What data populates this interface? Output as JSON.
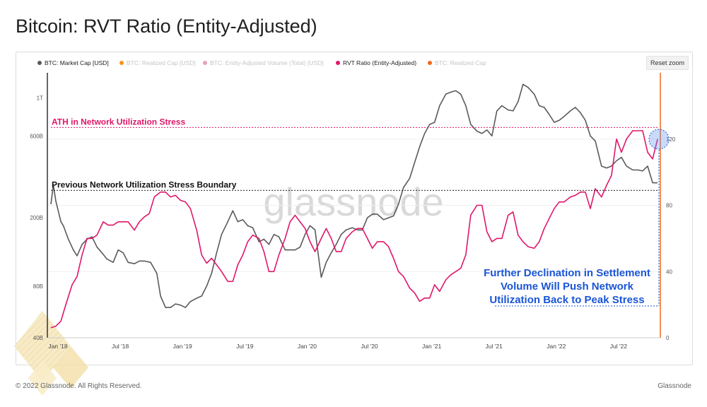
{
  "page": {
    "title": "Bitcoin: RVT Ratio (Entity-Adjusted)",
    "copyright": "© 2022 Glassnode. All Rights Reserved.",
    "brand": "Glassnode",
    "watermark": "glassnode",
    "reset_zoom_label": "Reset zoom"
  },
  "colors": {
    "market_cap": "#5a5a5a",
    "realized_cap": "#f7931a",
    "entity_volume": "#e8a0bf",
    "rvt_ratio": "#e0166a",
    "realized_cap_2": "#f26a1b",
    "annotation_blue": "#1a55d6"
  },
  "chart_data": {
    "type": "line",
    "legend": [
      {
        "name": "BTC: Market Cap [USD]",
        "color": "#5a5a5a",
        "active": true
      },
      {
        "name": "BTC: Realized Cap [USD]",
        "color": "#f7931a",
        "active": false
      },
      {
        "name": "BTC: Entity-Adjusted Volume (Total) [USD]",
        "color": "#e8a0bf",
        "active": false
      },
      {
        "name": "RVT Ratio (Entity-Adjusted)",
        "color": "#e0166a",
        "active": true
      },
      {
        "name": "BTC: Realized Cap",
        "color": "#f26a1b",
        "active": false
      }
    ],
    "legend_placement": "top-left",
    "x_ticks": [
      "Jan '18",
      "Jul '18",
      "Jan '19",
      "Jul '19",
      "Jan '20",
      "Jul '20",
      "Jan '21",
      "Jul '21",
      "Jan '22",
      "Jul '22"
    ],
    "x_range": [
      2018.0,
      2022.875
    ],
    "y_left": {
      "scale": "log",
      "ticks": [
        "40B",
        "80B",
        "200B",
        "600B",
        "1T"
      ],
      "tick_values": [
        40,
        80,
        200,
        600,
        1000
      ],
      "range": [
        40,
        1400
      ]
    },
    "y_right": {
      "scale": "linear",
      "ticks": [
        "0",
        "40",
        "80",
        "120"
      ],
      "tick_values": [
        0,
        40,
        80,
        120
      ],
      "range": [
        0,
        160
      ]
    },
    "grid": true,
    "series": [
      {
        "name": "BTC: Market Cap [USD]",
        "axis": "left",
        "unit": "billion USD",
        "points": [
          [
            2018.0,
            240
          ],
          [
            2018.02,
            310
          ],
          [
            2018.04,
            250
          ],
          [
            2018.08,
            190
          ],
          [
            2018.1,
            180
          ],
          [
            2018.14,
            150
          ],
          [
            2018.18,
            130
          ],
          [
            2018.21,
            120
          ],
          [
            2018.25,
            140
          ],
          [
            2018.29,
            150
          ],
          [
            2018.33,
            155
          ],
          [
            2018.37,
            135
          ],
          [
            2018.41,
            125
          ],
          [
            2018.45,
            115
          ],
          [
            2018.5,
            110
          ],
          [
            2018.54,
            130
          ],
          [
            2018.58,
            125
          ],
          [
            2018.62,
            110
          ],
          [
            2018.67,
            108
          ],
          [
            2018.71,
            112
          ],
          [
            2018.75,
            112
          ],
          [
            2018.8,
            110
          ],
          [
            2018.85,
            95
          ],
          [
            2018.88,
            70
          ],
          [
            2018.92,
            60
          ],
          [
            2018.96,
            60
          ],
          [
            2019.0,
            63
          ],
          [
            2019.04,
            62
          ],
          [
            2019.08,
            60
          ],
          [
            2019.12,
            65
          ],
          [
            2019.17,
            68
          ],
          [
            2019.21,
            70
          ],
          [
            2019.25,
            80
          ],
          [
            2019.29,
            95
          ],
          [
            2019.33,
            125
          ],
          [
            2019.37,
            160
          ],
          [
            2019.42,
            190
          ],
          [
            2019.46,
            220
          ],
          [
            2019.5,
            190
          ],
          [
            2019.54,
            195
          ],
          [
            2019.58,
            180
          ],
          [
            2019.62,
            175
          ],
          [
            2019.67,
            145
          ],
          [
            2019.71,
            150
          ],
          [
            2019.75,
            140
          ],
          [
            2019.79,
            160
          ],
          [
            2019.83,
            155
          ],
          [
            2019.88,
            130
          ],
          [
            2019.92,
            130
          ],
          [
            2019.96,
            130
          ],
          [
            2020.0,
            135
          ],
          [
            2020.04,
            160
          ],
          [
            2020.08,
            180
          ],
          [
            2020.12,
            170
          ],
          [
            2020.17,
            90
          ],
          [
            2020.21,
            110
          ],
          [
            2020.25,
            125
          ],
          [
            2020.29,
            140
          ],
          [
            2020.33,
            160
          ],
          [
            2020.37,
            170
          ],
          [
            2020.42,
            175
          ],
          [
            2020.46,
            170
          ],
          [
            2020.5,
            170
          ],
          [
            2020.54,
            200
          ],
          [
            2020.58,
            210
          ],
          [
            2020.62,
            210
          ],
          [
            2020.67,
            195
          ],
          [
            2020.71,
            200
          ],
          [
            2020.75,
            205
          ],
          [
            2020.79,
            240
          ],
          [
            2020.83,
            300
          ],
          [
            2020.88,
            340
          ],
          [
            2020.92,
            420
          ],
          [
            2020.96,
            520
          ],
          [
            2021.0,
            620
          ],
          [
            2021.04,
            700
          ],
          [
            2021.08,
            720
          ],
          [
            2021.12,
            900
          ],
          [
            2021.17,
            1050
          ],
          [
            2021.21,
            1080
          ],
          [
            2021.25,
            1100
          ],
          [
            2021.29,
            1050
          ],
          [
            2021.33,
            900
          ],
          [
            2021.37,
            700
          ],
          [
            2021.42,
            640
          ],
          [
            2021.46,
            620
          ],
          [
            2021.5,
            650
          ],
          [
            2021.54,
            600
          ],
          [
            2021.58,
            840
          ],
          [
            2021.62,
            900
          ],
          [
            2021.67,
            850
          ],
          [
            2021.71,
            840
          ],
          [
            2021.75,
            950
          ],
          [
            2021.79,
            1200
          ],
          [
            2021.83,
            1150
          ],
          [
            2021.88,
            1050
          ],
          [
            2021.92,
            900
          ],
          [
            2021.96,
            880
          ],
          [
            2022.0,
            800
          ],
          [
            2022.04,
            720
          ],
          [
            2022.08,
            740
          ],
          [
            2022.12,
            780
          ],
          [
            2022.17,
            840
          ],
          [
            2022.21,
            880
          ],
          [
            2022.25,
            820
          ],
          [
            2022.29,
            740
          ],
          [
            2022.33,
            600
          ],
          [
            2022.37,
            560
          ],
          [
            2022.42,
            400
          ],
          [
            2022.46,
            390
          ],
          [
            2022.5,
            400
          ],
          [
            2022.54,
            430
          ],
          [
            2022.58,
            450
          ],
          [
            2022.62,
            400
          ],
          [
            2022.67,
            380
          ],
          [
            2022.71,
            380
          ],
          [
            2022.75,
            375
          ],
          [
            2022.79,
            400
          ],
          [
            2022.83,
            320
          ],
          [
            2022.87,
            320
          ]
        ]
      },
      {
        "name": "RVT Ratio (Entity-Adjusted)",
        "axis": "right",
        "unit": "ratio",
        "points": [
          [
            2018.0,
            6
          ],
          [
            2018.04,
            7
          ],
          [
            2018.08,
            10
          ],
          [
            2018.12,
            20
          ],
          [
            2018.17,
            32
          ],
          [
            2018.21,
            37
          ],
          [
            2018.25,
            50
          ],
          [
            2018.29,
            60
          ],
          [
            2018.33,
            60
          ],
          [
            2018.37,
            62
          ],
          [
            2018.42,
            70
          ],
          [
            2018.46,
            68
          ],
          [
            2018.5,
            68
          ],
          [
            2018.54,
            70
          ],
          [
            2018.58,
            70
          ],
          [
            2018.62,
            70
          ],
          [
            2018.67,
            65
          ],
          [
            2018.71,
            70
          ],
          [
            2018.75,
            73
          ],
          [
            2018.79,
            75
          ],
          [
            2018.83,
            85
          ],
          [
            2018.88,
            88
          ],
          [
            2018.92,
            88
          ],
          [
            2018.96,
            85
          ],
          [
            2019.0,
            86
          ],
          [
            2019.04,
            83
          ],
          [
            2019.08,
            82
          ],
          [
            2019.12,
            78
          ],
          [
            2019.17,
            65
          ],
          [
            2019.21,
            50
          ],
          [
            2019.25,
            45
          ],
          [
            2019.29,
            48
          ],
          [
            2019.33,
            44
          ],
          [
            2019.37,
            40
          ],
          [
            2019.42,
            34
          ],
          [
            2019.46,
            34
          ],
          [
            2019.5,
            44
          ],
          [
            2019.54,
            50
          ],
          [
            2019.58,
            58
          ],
          [
            2019.62,
            62
          ],
          [
            2019.67,
            60
          ],
          [
            2019.71,
            52
          ],
          [
            2019.75,
            40
          ],
          [
            2019.79,
            40
          ],
          [
            2019.83,
            50
          ],
          [
            2019.88,
            60
          ],
          [
            2019.92,
            70
          ],
          [
            2019.96,
            74
          ],
          [
            2020.0,
            70
          ],
          [
            2020.04,
            66
          ],
          [
            2020.08,
            58
          ],
          [
            2020.12,
            52
          ],
          [
            2020.17,
            60
          ],
          [
            2020.21,
            66
          ],
          [
            2020.25,
            60
          ],
          [
            2020.29,
            52
          ],
          [
            2020.33,
            52
          ],
          [
            2020.37,
            60
          ],
          [
            2020.42,
            64
          ],
          [
            2020.46,
            66
          ],
          [
            2020.5,
            66
          ],
          [
            2020.54,
            60
          ],
          [
            2020.58,
            54
          ],
          [
            2020.62,
            58
          ],
          [
            2020.67,
            58
          ],
          [
            2020.71,
            55
          ],
          [
            2020.75,
            48
          ],
          [
            2020.79,
            40
          ],
          [
            2020.83,
            37
          ],
          [
            2020.88,
            30
          ],
          [
            2020.92,
            27
          ],
          [
            2020.96,
            22
          ],
          [
            2021.0,
            24
          ],
          [
            2021.04,
            24
          ],
          [
            2021.08,
            32
          ],
          [
            2021.12,
            28
          ],
          [
            2021.17,
            35
          ],
          [
            2021.21,
            38
          ],
          [
            2021.25,
            40
          ],
          [
            2021.29,
            42
          ],
          [
            2021.33,
            50
          ],
          [
            2021.37,
            74
          ],
          [
            2021.42,
            80
          ],
          [
            2021.46,
            80
          ],
          [
            2021.5,
            64
          ],
          [
            2021.54,
            58
          ],
          [
            2021.58,
            60
          ],
          [
            2021.62,
            60
          ],
          [
            2021.67,
            74
          ],
          [
            2021.71,
            76
          ],
          [
            2021.75,
            62
          ],
          [
            2021.79,
            58
          ],
          [
            2021.83,
            55
          ],
          [
            2021.88,
            54
          ],
          [
            2021.92,
            58
          ],
          [
            2021.96,
            66
          ],
          [
            2022.0,
            72
          ],
          [
            2022.04,
            78
          ],
          [
            2022.08,
            82
          ],
          [
            2022.12,
            82
          ],
          [
            2022.17,
            85
          ],
          [
            2022.21,
            86
          ],
          [
            2022.25,
            88
          ],
          [
            2022.29,
            88
          ],
          [
            2022.33,
            78
          ],
          [
            2022.37,
            90
          ],
          [
            2022.42,
            85
          ],
          [
            2022.46,
            92
          ],
          [
            2022.5,
            98
          ],
          [
            2022.54,
            120
          ],
          [
            2022.58,
            112
          ],
          [
            2022.62,
            120
          ],
          [
            2022.67,
            125
          ],
          [
            2022.71,
            125
          ],
          [
            2022.75,
            125
          ],
          [
            2022.79,
            112
          ],
          [
            2022.83,
            108
          ],
          [
            2022.87,
            120
          ]
        ]
      }
    ],
    "annotations": [
      {
        "text": "ATH in Network Utilization Stress",
        "color": "#e0166a",
        "y_right": 127
      },
      {
        "text": "Previous Network Utilization Stress Boundary",
        "color": "#111111",
        "y_right": 89
      },
      {
        "text": "Further Declination in Settlement Volume Will Push Network Utilization Back to Peak Stress",
        "color": "#1a55d6",
        "lines": [
          "Further Declination in Settlement",
          "Volume Will Push Network",
          "Utilization Back to Peak Stress"
        ]
      }
    ]
  }
}
